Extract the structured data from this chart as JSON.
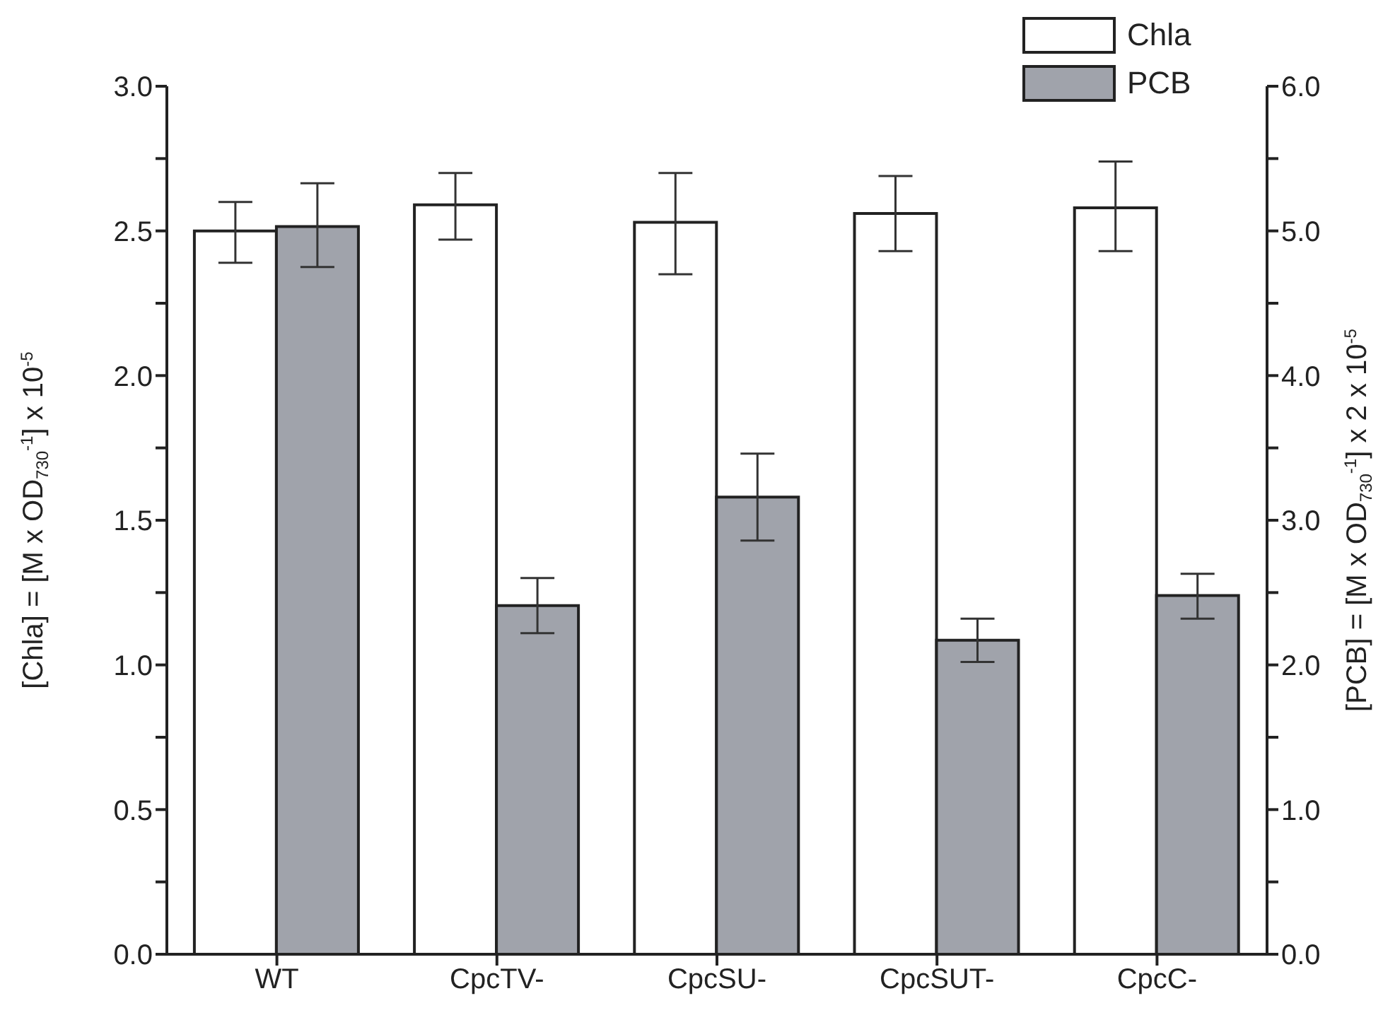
{
  "chart_data": {
    "type": "bar",
    "categories": [
      "WT",
      "CpcTV-",
      "CpcSU-",
      "CpcSUT-",
      "CpcC-"
    ],
    "ylabel": "[Chla] = [M x OD$_{730}$$^{-1}$] x 10$^{-5}$",
    "y2label": "[PCB] = [M x OD$_{730}$$^{-1}$] x 2 x 10$^{-5}$",
    "series": [
      {
        "name": "Chla",
        "color": "#ffffff",
        "values": [
          2.5,
          2.59,
          2.53,
          2.56,
          2.58
        ],
        "errors": [
          [
            2.39,
            2.6
          ],
          [
            2.47,
            2.7
          ],
          [
            2.35,
            2.7
          ],
          [
            2.43,
            2.69
          ],
          [
            2.43,
            2.74
          ]
        ]
      },
      {
        "name": "PCB",
        "color": "#a0a3ab",
        "axis": "y2",
        "values": [
          5.03,
          2.41,
          3.16,
          2.17,
          2.48
        ],
        "errors": [
          [
            4.75,
            5.33
          ],
          [
            2.22,
            2.6
          ],
          [
            2.86,
            3.46
          ],
          [
            2.02,
            2.32
          ],
          [
            2.32,
            2.63
          ]
        ]
      }
    ],
    "ylim": [
      0,
      3
    ],
    "yticks": [
      {
        "value": 0,
        "label": "0.0"
      },
      {
        "value": 0.25,
        "label": null
      },
      {
        "value": 0.5,
        "label": "0.5"
      },
      {
        "value": 0.75,
        "label": null
      },
      {
        "value": 1,
        "label": "1.0"
      },
      {
        "value": 1.25,
        "label": null
      },
      {
        "value": 1.5,
        "label": "1.5"
      },
      {
        "value": 1.75,
        "label": null
      },
      {
        "value": 2,
        "label": "2.0"
      },
      {
        "value": 2.25,
        "label": null
      },
      {
        "value": 2.5,
        "label": "2.5"
      },
      {
        "value": 2.75,
        "label": null
      },
      {
        "value": 3,
        "label": "3.0"
      }
    ],
    "y2lim": [
      0,
      6
    ],
    "y2ticks": [
      {
        "value": 0,
        "label": "0.0"
      },
      {
        "value": 0.5,
        "label": null
      },
      {
        "value": 1,
        "label": "1.0"
      },
      {
        "value": 1.5,
        "label": null
      },
      {
        "value": 2,
        "label": "2.0"
      },
      {
        "value": 2.5,
        "label": null
      },
      {
        "value": 3,
        "label": "3.0"
      },
      {
        "value": 3.5,
        "label": null
      },
      {
        "value": 4,
        "label": "4.0"
      },
      {
        "value": 4.5,
        "label": null
      },
      {
        "value": 5,
        "label": "5.0"
      },
      {
        "value": 5.5,
        "label": null
      },
      {
        "value": 6,
        "label": "6.0"
      }
    ],
    "legend": "top right",
    "grid": false
  }
}
